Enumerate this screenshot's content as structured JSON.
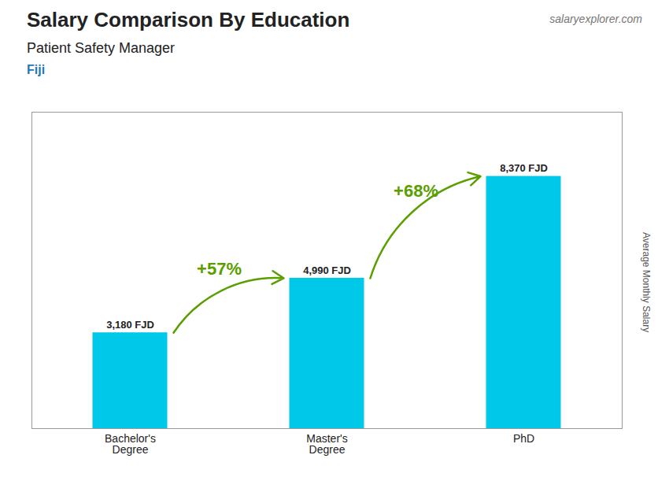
{
  "chart_data": {
    "type": "bar",
    "title": "Salary Comparison By Education",
    "subtitle": "Patient Safety Manager",
    "country": "Fiji",
    "source": "salaryexplorer.com",
    "ylabel": "Average Monthly Salary",
    "categories": [
      "Bachelor's\nDegree",
      "Master's\nDegree",
      "PhD"
    ],
    "values": [
      3180,
      4990,
      8370
    ],
    "value_labels": [
      "3,180 FJD",
      "4,990 FJD",
      "8,370 FJD"
    ],
    "data_labels": true,
    "annotations": [
      "+57%",
      "+68%"
    ],
    "color": "#00c8e8",
    "ylim": [
      0,
      10500
    ],
    "yticks": [],
    "tick_labels": "x",
    "grid": false
  }
}
